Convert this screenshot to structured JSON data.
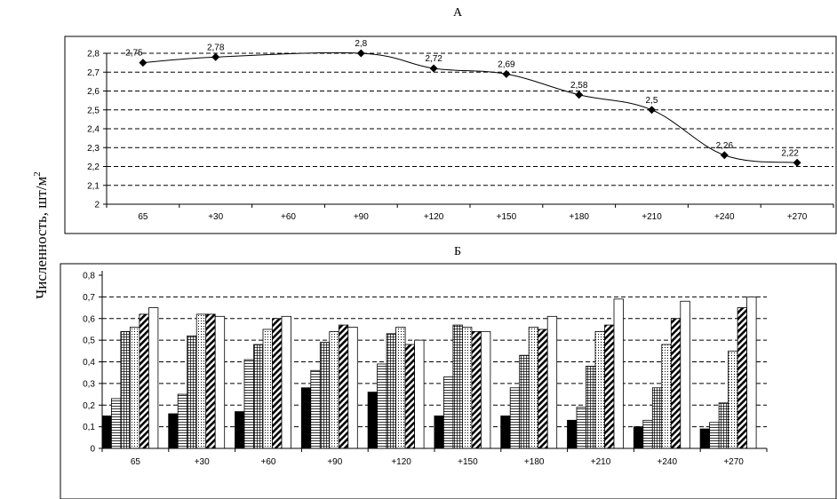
{
  "figure": {
    "ylabel": "Численность, шт/м",
    "ylabel_sup": "2"
  },
  "chart_data": [
    {
      "type": "line",
      "title": "А",
      "categories": [
        "65",
        "+30",
        "+60",
        "+90",
        "+120",
        "+150",
        "+180",
        "+210",
        "+240",
        "+270"
      ],
      "values": [
        2.75,
        2.78,
        null,
        2.8,
        2.72,
        2.69,
        2.58,
        2.5,
        2.26,
        2.22
      ],
      "data_labels": [
        "2,75",
        "2,78",
        "",
        "2,8",
        "2,72",
        "2,69",
        "2,58",
        "2,5",
        "2,26",
        "2,22"
      ],
      "ylim": [
        2,
        2.8
      ],
      "yticks": [
        "2",
        "2,1",
        "2,2",
        "2,3",
        "2,4",
        "2,5",
        "2,6",
        "2,7",
        "2,8"
      ],
      "marker": "diamond",
      "smooth": true,
      "grid": "horizontal dashed",
      "color": "#000000"
    },
    {
      "type": "bar",
      "title": "Б",
      "categories": [
        "65",
        "+30",
        "+60",
        "+90",
        "+120",
        "+150",
        "+180",
        "+210",
        "+240",
        "+270"
      ],
      "ylim": [
        0,
        0.8
      ],
      "yticks": [
        "0",
        "0,1",
        "0,2",
        "0,3",
        "0,4",
        "0,5",
        "0,6",
        "0,7",
        "0,8"
      ],
      "grid": "horizontal dashed",
      "series": [
        {
          "pattern": "solid",
          "values": [
            0.15,
            0.16,
            0.17,
            0.28,
            0.26,
            0.15,
            0.15,
            0.13,
            0.1,
            0.09
          ]
        },
        {
          "pattern": "hlines",
          "values": [
            0.23,
            0.25,
            0.41,
            0.36,
            0.39,
            0.33,
            0.28,
            0.19,
            0.13,
            0.12
          ]
        },
        {
          "pattern": "grid",
          "values": [
            0.54,
            0.52,
            0.48,
            0.49,
            0.53,
            0.57,
            0.43,
            0.38,
            0.28,
            0.21
          ]
        },
        {
          "pattern": "dots",
          "values": [
            0.56,
            0.62,
            0.55,
            0.54,
            0.56,
            0.56,
            0.56,
            0.54,
            0.48,
            0.45
          ]
        },
        {
          "pattern": "diagonal",
          "values": [
            0.62,
            0.62,
            0.6,
            0.57,
            0.48,
            0.54,
            0.55,
            0.57,
            0.6,
            0.65
          ]
        },
        {
          "pattern": "empty",
          "values": [
            0.65,
            0.61,
            0.61,
            0.56,
            0.5,
            0.54,
            0.61,
            0.69,
            0.68,
            0.7
          ]
        }
      ]
    }
  ]
}
